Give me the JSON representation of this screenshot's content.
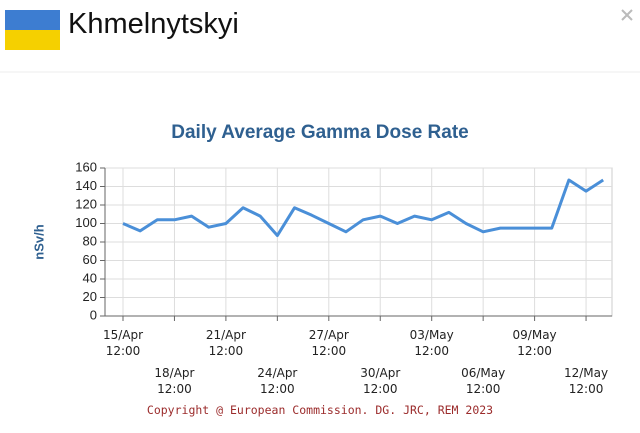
{
  "header": {
    "title": "Khmelnytskyi"
  },
  "chart_data": {
    "type": "line",
    "title": "Daily Average Gamma Dose Rate",
    "y_label": "nSv/h",
    "categories": [
      "15/Apr 12:00",
      null,
      null,
      "18/Apr 12:00",
      null,
      null,
      "21/Apr 12:00",
      null,
      null,
      "24/Apr 12:00",
      null,
      null,
      "27/Apr 12:00",
      null,
      null,
      "30/Apr 12:00",
      null,
      null,
      "03/May 12:00",
      null,
      null,
      "06/May 12:00",
      null,
      null,
      "09/May 12:00",
      null,
      null,
      "12/May 12:00",
      null
    ],
    "series": [
      {
        "name": "nSv/h",
        "color": "#4a8fd8",
        "values": [
          100,
          92,
          104,
          104,
          108,
          96,
          100,
          117,
          108,
          87,
          117,
          109,
          100,
          91,
          104,
          108,
          100,
          108,
          104,
          112,
          100,
          91,
          95,
          95,
          95,
          95,
          147,
          135,
          147
        ]
      }
    ],
    "ylim": [
      0,
      160
    ],
    "yticks": [
      0,
      20,
      40,
      60,
      80,
      100,
      120,
      140,
      160
    ],
    "grid": true
  },
  "footer": {
    "copyright": "Copyright @ European Commission. DG. JRC, REM 2023"
  }
}
